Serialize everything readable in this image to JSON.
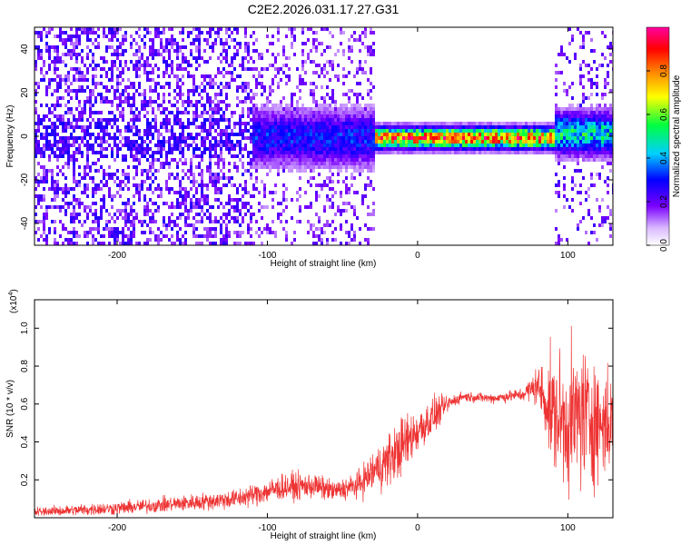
{
  "title": "C2E2.2026.031.17.27.G31",
  "chart_data": [
    {
      "type": "heatmap",
      "name": "spectrogram",
      "xlabel": "Height of straight line (km)",
      "ylabel": "Frequency (Hz)",
      "xlim": [
        -255,
        130
      ],
      "ylim": [
        -50,
        50
      ],
      "xticks": [
        -200,
        -100,
        0,
        100
      ],
      "xtick_labels": [
        "-200",
        "-100",
        "0",
        "100"
      ],
      "yticks": [
        -40,
        -20,
        0,
        20,
        40
      ],
      "ytick_labels": [
        "-40",
        "-20",
        "0",
        "20",
        "40"
      ],
      "colorbar": {
        "label": "Normalized spectral amplitude",
        "range": [
          0,
          1
        ],
        "ticks": [
          0.0,
          0.2,
          0.4,
          0.6,
          0.8
        ],
        "tick_labels": [
          "0.0",
          "0.2",
          "0.4",
          "0.6",
          "0.8"
        ],
        "colors": [
          "#ffffff",
          "#7a00ff",
          "#0000ff",
          "#00d0ff",
          "#00ff40",
          "#ffff00",
          "#ff8000",
          "#ff0000",
          "#ff00a0"
        ]
      },
      "regions": [
        {
          "x_range": [
            -255,
            -110
          ],
          "description": "scattered noise",
          "amplitude": 0.2
        },
        {
          "x_range": [
            -110,
            -30
          ],
          "center_hz": 0,
          "width_hz": 8,
          "amplitude": 0.3
        },
        {
          "x_range": [
            -30,
            90
          ],
          "center_hz": 0,
          "width_hz": 3,
          "amplitude": 0.95
        },
        {
          "x_range": [
            90,
            130
          ],
          "center_hz": 2,
          "width_hz": 6,
          "amplitude": 0.5
        }
      ]
    },
    {
      "type": "line",
      "name": "snr",
      "xlabel": "Height of straight line (km)",
      "ylabel": "SNR (10 * v/v)",
      "y_multiplier": "(x10^4)",
      "y_multiplier_base": "(x10",
      "y_multiplier_exp": "4",
      "y_multiplier_close": ")",
      "xlim": [
        -255,
        130
      ],
      "ylim": [
        0,
        1.15
      ],
      "xticks": [
        -200,
        -100,
        0,
        100
      ],
      "xtick_labels": [
        "-200",
        "-100",
        "0",
        "100"
      ],
      "yticks": [
        0.2,
        0.4,
        0.6,
        0.8,
        1.0
      ],
      "ytick_labels": [
        "0.2",
        "0.4",
        "0.6",
        "0.8",
        "1.0"
      ],
      "color": "#ee3333",
      "envelope": [
        {
          "x": -255,
          "mean": 0.03,
          "spread": 0.03
        },
        {
          "x": -200,
          "mean": 0.05,
          "spread": 0.04
        },
        {
          "x": -150,
          "mean": 0.08,
          "spread": 0.05
        },
        {
          "x": -120,
          "mean": 0.1,
          "spread": 0.06
        },
        {
          "x": -90,
          "mean": 0.16,
          "spread": 0.08
        },
        {
          "x": -70,
          "mean": 0.17,
          "spread": 0.08
        },
        {
          "x": -55,
          "mean": 0.14,
          "spread": 0.06
        },
        {
          "x": -40,
          "mean": 0.17,
          "spread": 0.08
        },
        {
          "x": -30,
          "mean": 0.24,
          "spread": 0.13
        },
        {
          "x": -20,
          "mean": 0.3,
          "spread": 0.16
        },
        {
          "x": -10,
          "mean": 0.38,
          "spread": 0.18
        },
        {
          "x": 0,
          "mean": 0.46,
          "spread": 0.14
        },
        {
          "x": 10,
          "mean": 0.53,
          "spread": 0.12
        },
        {
          "x": 20,
          "mean": 0.6,
          "spread": 0.05
        },
        {
          "x": 30,
          "mean": 0.64,
          "spread": 0.03
        },
        {
          "x": 50,
          "mean": 0.63,
          "spread": 0.03
        },
        {
          "x": 70,
          "mean": 0.65,
          "spread": 0.04
        },
        {
          "x": 80,
          "mean": 0.7,
          "spread": 0.12
        },
        {
          "x": 90,
          "mean": 0.55,
          "spread": 0.35
        },
        {
          "x": 100,
          "mean": 0.5,
          "spread": 0.4
        },
        {
          "x": 110,
          "mean": 0.55,
          "spread": 0.45
        },
        {
          "x": 120,
          "mean": 0.5,
          "spread": 0.35
        },
        {
          "x": 130,
          "mean": 0.5,
          "spread": 0.3
        }
      ]
    }
  ]
}
